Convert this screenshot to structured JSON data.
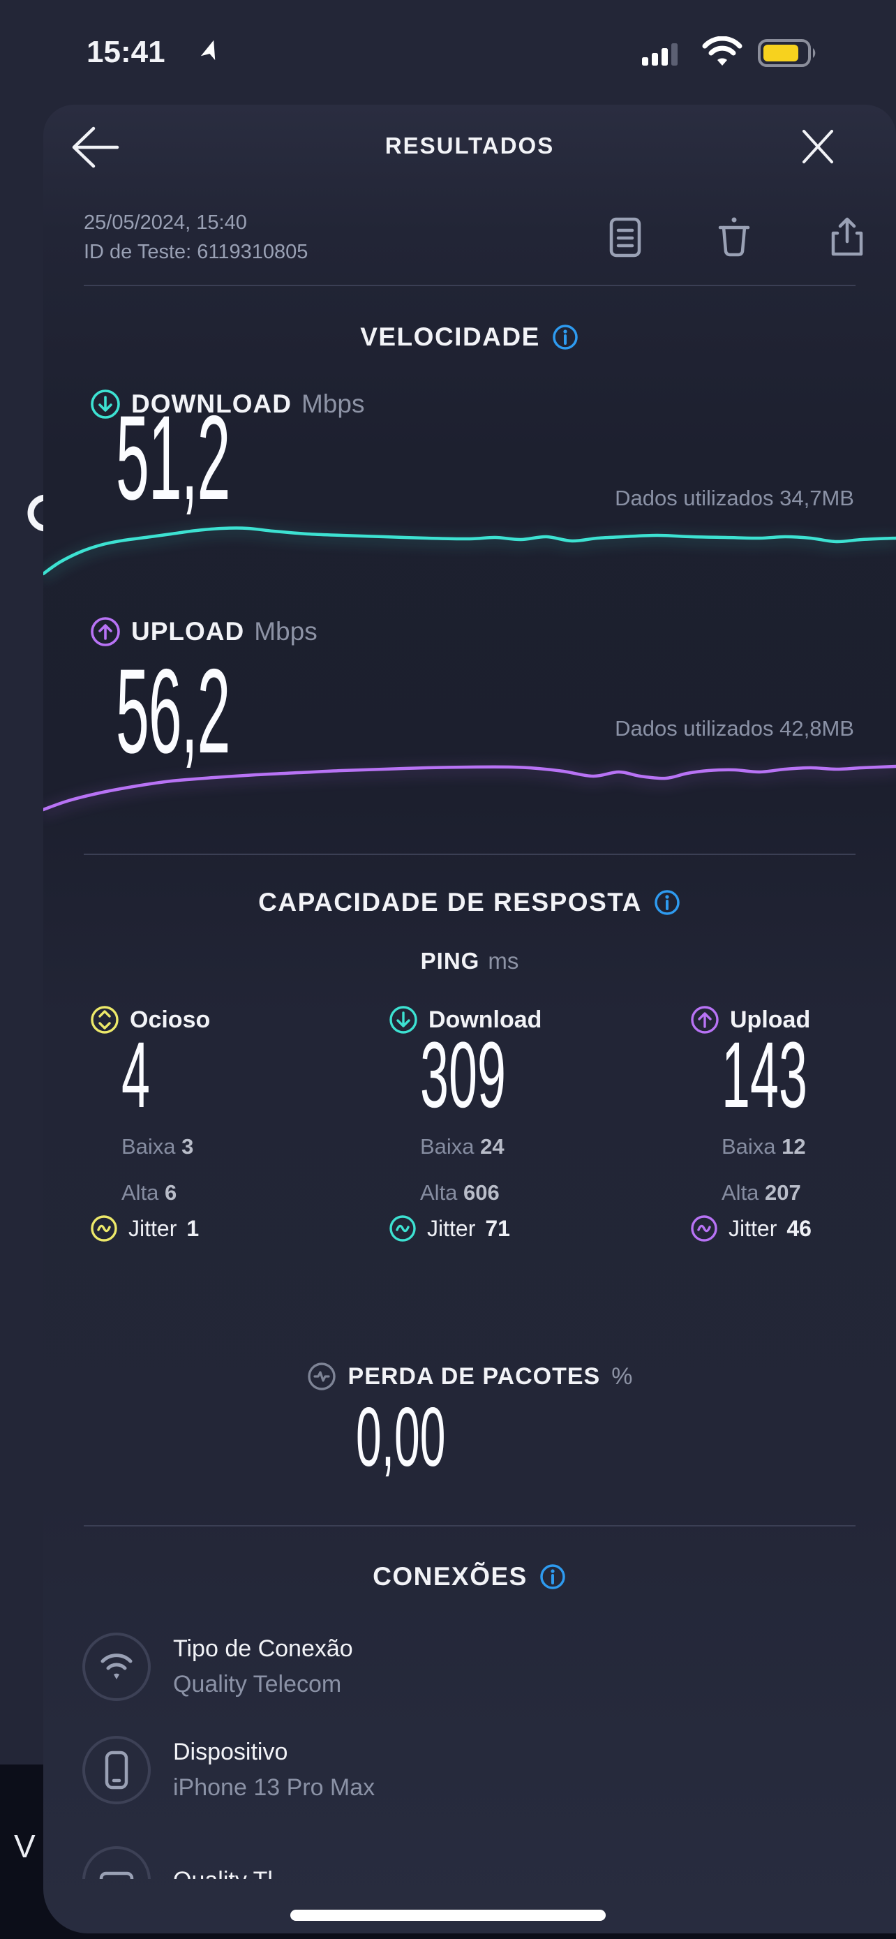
{
  "status_bar": {
    "time": "15:41"
  },
  "header": {
    "title": "RESULTADOS"
  },
  "meta": {
    "datetime": "25/05/2024, 15:40",
    "test_id": "ID de Teste: 6119310805"
  },
  "colors": {
    "teal": "#3de2d2",
    "purple": "#b873f5",
    "yellow": "#ede96a",
    "info_blue": "#2e9bf0",
    "battery_yellow": "#f7d21e",
    "gray_icon": "#9aa1b5"
  },
  "speed": {
    "section_title": "VELOCIDADE",
    "download": {
      "label": "DOWNLOAD",
      "unit": "Mbps",
      "value": "51,2",
      "data_used": "Dados utilizados 34,7MB",
      "sparkline": [
        [
          0,
          132
        ],
        [
          0.02,
          115
        ],
        [
          0.045,
          100
        ],
        [
          0.07,
          90
        ],
        [
          0.095,
          84
        ],
        [
          0.12,
          80
        ],
        [
          0.15,
          75
        ],
        [
          0.18,
          70
        ],
        [
          0.21,
          67
        ],
        [
          0.24,
          67
        ],
        [
          0.27,
          71
        ],
        [
          0.31,
          75
        ],
        [
          0.35,
          77
        ],
        [
          0.4,
          79
        ],
        [
          0.45,
          81
        ],
        [
          0.5,
          82
        ],
        [
          0.53,
          80
        ],
        [
          0.56,
          83
        ],
        [
          0.59,
          79
        ],
        [
          0.62,
          85
        ],
        [
          0.65,
          81
        ],
        [
          0.68,
          79
        ],
        [
          0.72,
          77
        ],
        [
          0.76,
          79
        ],
        [
          0.8,
          80
        ],
        [
          0.84,
          81
        ],
        [
          0.87,
          79
        ],
        [
          0.9,
          81
        ],
        [
          0.93,
          86
        ],
        [
          0.96,
          83
        ],
        [
          1,
          81
        ]
      ]
    },
    "upload": {
      "label": "UPLOAD",
      "unit": "Mbps",
      "value": "56,2",
      "data_used": "Dados utilizados 42,8MB",
      "sparkline": [
        [
          0,
          140
        ],
        [
          0.03,
          127
        ],
        [
          0.07,
          115
        ],
        [
          0.11,
          106
        ],
        [
          0.15,
          99
        ],
        [
          0.2,
          94
        ],
        [
          0.25,
          90
        ],
        [
          0.3,
          87
        ],
        [
          0.35,
          84
        ],
        [
          0.4,
          82
        ],
        [
          0.45,
          80
        ],
        [
          0.5,
          79
        ],
        [
          0.55,
          79
        ],
        [
          0.58,
          81
        ],
        [
          0.61,
          85
        ],
        [
          0.645,
          92
        ],
        [
          0.675,
          86
        ],
        [
          0.7,
          92
        ],
        [
          0.73,
          95
        ],
        [
          0.755,
          88
        ],
        [
          0.78,
          84
        ],
        [
          0.81,
          83
        ],
        [
          0.84,
          86
        ],
        [
          0.87,
          82
        ],
        [
          0.9,
          80
        ],
        [
          0.93,
          82
        ],
        [
          0.96,
          80
        ],
        [
          1,
          78
        ]
      ]
    }
  },
  "responsiveness": {
    "section_title": "CAPACIDADE DE RESPOSTA",
    "ping_label": "PING",
    "ping_unit": "ms",
    "columns": [
      {
        "label": "Ocioso",
        "value": "4",
        "low_label": "Baixa",
        "low": "3",
        "high_label": "Alta",
        "high": "6",
        "jitter_label": "Jitter",
        "jitter": "1",
        "color": "#ede96a"
      },
      {
        "label": "Download",
        "value": "309",
        "low_label": "Baixa",
        "low": "24",
        "high_label": "Alta",
        "high": "606",
        "jitter_label": "Jitter",
        "jitter": "71",
        "color": "#3de2d2"
      },
      {
        "label": "Upload",
        "value": "143",
        "low_label": "Baixa",
        "low": "12",
        "high_label": "Alta",
        "high": "207",
        "jitter_label": "Jitter",
        "jitter": "46",
        "color": "#b873f5"
      }
    ]
  },
  "packet_loss": {
    "label": "PERDA DE PACOTES",
    "unit": "%",
    "value": "0,00"
  },
  "connections": {
    "section_title": "CONEXÕES",
    "items": [
      {
        "title": "Tipo de Conexão",
        "subtitle": "Quality Telecom"
      },
      {
        "title": "Dispositivo",
        "subtitle": "iPhone 13 Pro Max"
      },
      {
        "title": "Quality Tl",
        "subtitle": ""
      }
    ]
  },
  "background": {
    "partial_letter": "V"
  }
}
